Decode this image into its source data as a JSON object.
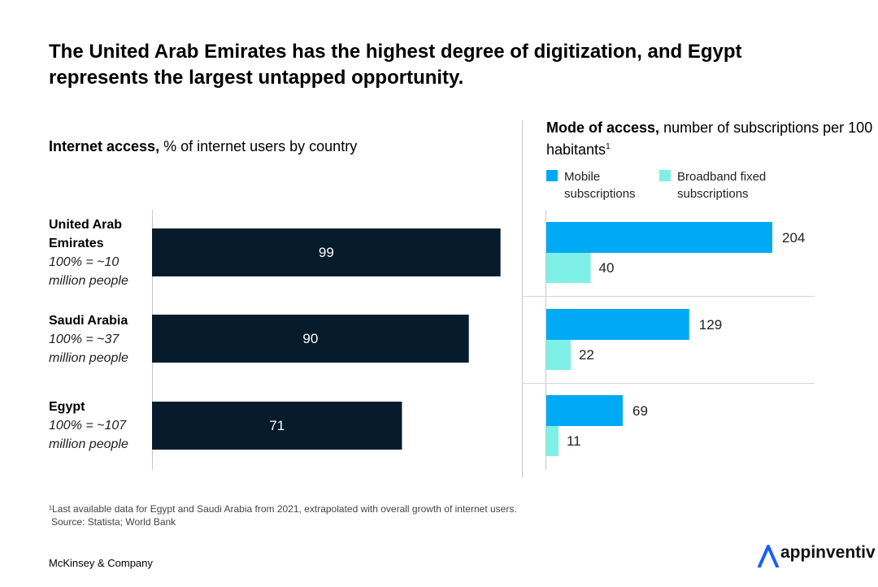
{
  "title": "The United Arab Emirates has the highest degree of digitization, and Egypt represents the largest untapped opportunity.",
  "left_header": {
    "bold": "Internet access,",
    "rest": " % of internet users by country"
  },
  "right_header": {
    "bold": "Mode of access,",
    "rest": " number of subscriptions per 100 habitants",
    "sup": "1"
  },
  "legend": {
    "mobile": "Mobile subscriptions",
    "broadband": "Broadband fixed subscriptions"
  },
  "countries": [
    {
      "name": "United Arab Emirates",
      "population": "100% = ~10 million people"
    },
    {
      "name": "Saudi Arabia",
      "population": "100% = ~37 million people"
    },
    {
      "name": "Egypt",
      "population": "100% = ~107 million people"
    }
  ],
  "colors": {
    "internet_bar": "#061c2d",
    "mobile": "#00a9f4",
    "broadband": "#7ff0e5",
    "divider": "#d6d6d6"
  },
  "chart_data": [
    {
      "type": "bar",
      "title": "Internet access, % of internet users by country",
      "categories": [
        "United Arab Emirates",
        "Saudi Arabia",
        "Egypt"
      ],
      "values": [
        99,
        90,
        71
      ],
      "xlim": [
        0,
        100
      ]
    },
    {
      "type": "bar",
      "title": "Mode of access, number of subscriptions per 100 habitants",
      "categories": [
        "United Arab Emirates",
        "Saudi Arabia",
        "Egypt"
      ],
      "series": [
        {
          "name": "Mobile subscriptions",
          "values": [
            204,
            129,
            69
          ]
        },
        {
          "name": "Broadband fixed subscriptions",
          "values": [
            40,
            22,
            11
          ]
        }
      ],
      "xlim": [
        0,
        210
      ]
    }
  ],
  "footnote": "¹Last available data for Egypt and Saudi Arabia from 2021, extrapolated with overall growth of internet users.",
  "source": "Source: Statista; World Bank",
  "brand": "McKinsey & Company",
  "logo_text": "appinventiv",
  "logo_icon": "appinventiv-a-icon"
}
